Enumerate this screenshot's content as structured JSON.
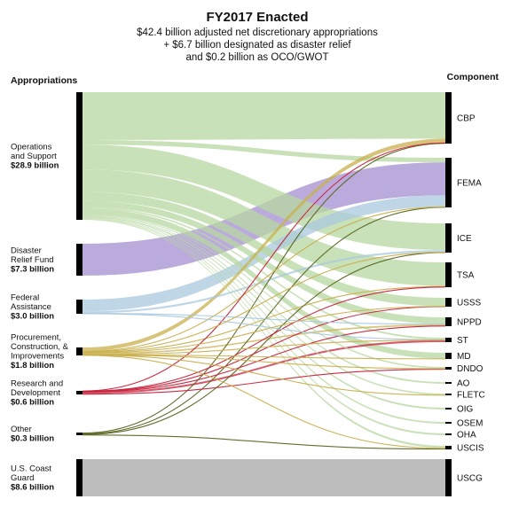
{
  "chart_data": {
    "type": "sankey",
    "title": "FY2017 Enacted",
    "subtitle": [
      "$42.4 billion adjusted net discretionary appropriations",
      "+ $6.7 billion designated as disaster relief",
      "and $0.2 billion as OCO/GWOT"
    ],
    "left_header": "Appropriations",
    "right_header": "Component",
    "sources": [
      {
        "id": "ops",
        "label_lines": [
          "Operations",
          "and Support"
        ],
        "amount_label": "$28.9 billion",
        "value": 28.9
      },
      {
        "id": "drf",
        "label_lines": [
          "Disaster",
          "Relief Fund"
        ],
        "amount_label": "$7.3 billion",
        "value": 7.3
      },
      {
        "id": "fa",
        "label_lines": [
          "Federal",
          "Assistance"
        ],
        "amount_label": "$3.0 billion",
        "value": 3.0
      },
      {
        "id": "pci",
        "label_lines": [
          "Procurement,",
          "Construction, &",
          "Improvements"
        ],
        "amount_label": "$1.8 billion",
        "value": 1.8
      },
      {
        "id": "rd",
        "label_lines": [
          "Research and",
          "Development"
        ],
        "amount_label": "$0.6 billion",
        "value": 0.6
      },
      {
        "id": "oth",
        "label_lines": [
          "Other"
        ],
        "amount_label": "$0.3 billion",
        "value": 0.3
      },
      {
        "id": "uscg_src",
        "label_lines": [
          "U.S. Coast",
          "Guard"
        ],
        "amount_label": "$8.6 billion",
        "value": 8.6
      }
    ],
    "targets": [
      {
        "id": "CBP",
        "label": "CBP"
      },
      {
        "id": "FEMA",
        "label": "FEMA"
      },
      {
        "id": "ICE",
        "label": "ICE"
      },
      {
        "id": "TSA",
        "label": "TSA"
      },
      {
        "id": "USSS",
        "label": "USSS"
      },
      {
        "id": "NPPD",
        "label": "NPPD"
      },
      {
        "id": "ST",
        "label": "ST"
      },
      {
        "id": "MD",
        "label": "MD"
      },
      {
        "id": "DNDO",
        "label": "DNDO"
      },
      {
        "id": "AO",
        "label": "AO"
      },
      {
        "id": "FLETC",
        "label": "FLETC"
      },
      {
        "id": "OIG",
        "label": "OIG"
      },
      {
        "id": "OSEM",
        "label": "OSEM"
      },
      {
        "id": "OHA",
        "label": "OHA"
      },
      {
        "id": "USCIS",
        "label": "USCIS"
      },
      {
        "id": "USCG",
        "label": "USCG"
      }
    ],
    "flows": [
      {
        "source": "ops",
        "target": "CBP",
        "value": 10.2
      },
      {
        "source": "ops",
        "target": "FEMA",
        "value": 1.0
      },
      {
        "source": "ops",
        "target": "ICE",
        "value": 5.3
      },
      {
        "source": "ops",
        "target": "TSA",
        "value": 4.8
      },
      {
        "source": "ops",
        "target": "USSS",
        "value": 1.9
      },
      {
        "source": "ops",
        "target": "NPPD",
        "value": 1.3
      },
      {
        "source": "ops",
        "target": "ST",
        "value": 0.3
      },
      {
        "source": "ops",
        "target": "MD",
        "value": 1.3
      },
      {
        "source": "ops",
        "target": "DNDO",
        "value": 0.2
      },
      {
        "source": "ops",
        "target": "AO",
        "value": 0.15
      },
      {
        "source": "ops",
        "target": "FLETC",
        "value": 0.25
      },
      {
        "source": "ops",
        "target": "OIG",
        "value": 0.15
      },
      {
        "source": "ops",
        "target": "OSEM",
        "value": 0.15
      },
      {
        "source": "ops",
        "target": "OHA",
        "value": 0.1
      },
      {
        "source": "ops",
        "target": "USCIS",
        "value": 0.15
      },
      {
        "source": "drf",
        "target": "FEMA",
        "value": 7.3
      },
      {
        "source": "fa",
        "target": "FEMA",
        "value": 2.5
      },
      {
        "source": "fa",
        "target": "ICE",
        "value": 0.4
      },
      {
        "source": "fa",
        "target": "NPPD",
        "value": 0.05
      },
      {
        "source": "fa",
        "target": "ST",
        "value": 0.05
      },
      {
        "source": "pci",
        "target": "CBP",
        "value": 0.9
      },
      {
        "source": "pci",
        "target": "FEMA",
        "value": 0.1
      },
      {
        "source": "pci",
        "target": "ICE",
        "value": 0.05
      },
      {
        "source": "pci",
        "target": "TSA",
        "value": 0.2
      },
      {
        "source": "pci",
        "target": "USSS",
        "value": 0.05
      },
      {
        "source": "pci",
        "target": "NPPD",
        "value": 0.3
      },
      {
        "source": "pci",
        "target": "ST",
        "value": 0.05
      },
      {
        "source": "pci",
        "target": "MD",
        "value": 0.05
      },
      {
        "source": "pci",
        "target": "DNDO",
        "value": 0.05
      },
      {
        "source": "pci",
        "target": "FLETC",
        "value": 0.05
      },
      {
        "source": "pci",
        "target": "USCIS",
        "value": 0.05
      },
      {
        "source": "rd",
        "target": "CBP",
        "value": 0.05
      },
      {
        "source": "rd",
        "target": "TSA",
        "value": 0.05
      },
      {
        "source": "rd",
        "target": "USSS",
        "value": 0.05
      },
      {
        "source": "rd",
        "target": "NPPD",
        "value": 0.05
      },
      {
        "source": "rd",
        "target": "ST",
        "value": 0.3
      },
      {
        "source": "rd",
        "target": "DNDO",
        "value": 0.1
      },
      {
        "source": "oth",
        "target": "CBP",
        "value": 0.12
      },
      {
        "source": "oth",
        "target": "FEMA",
        "value": 0.08
      },
      {
        "source": "oth",
        "target": "ICE",
        "value": 0.05
      },
      {
        "source": "oth",
        "target": "USCIS",
        "value": 0.05
      },
      {
        "source": "uscg_src",
        "target": "USCG",
        "value": 8.6
      }
    ],
    "colors": {
      "ops": "#b7d7a0",
      "drf": "#a48fd2",
      "fa": "#a9c8df",
      "pci": "#c9b04e",
      "rd": "#c8213a",
      "oth": "#5b6522",
      "uscg_src": "#bdbdbd",
      "node": "#000000"
    }
  }
}
